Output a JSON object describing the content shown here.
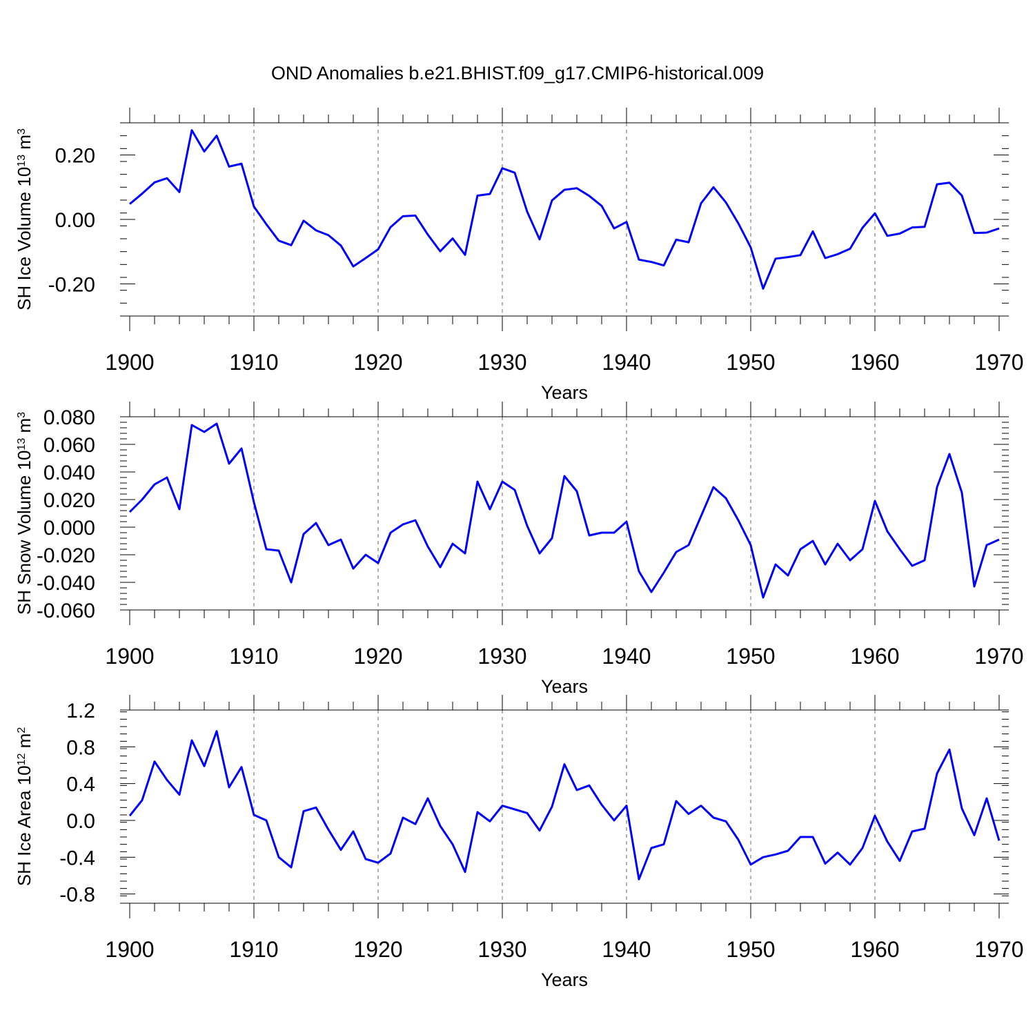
{
  "figure_title": "OND Anomalies b.e21.BHIST.f09_g17.CMIP6-historical.009",
  "line_color": "#0000ff",
  "chart_data": [
    {
      "type": "line",
      "ylabel_main": "SH Ice Volume 10",
      "ylabel_exp": "13",
      "ylabel_unit": " m",
      "ylabel_unit_exp": "3",
      "xlabel": "Years",
      "xlim": [
        1900,
        1970
      ],
      "ylim": [
        -0.3,
        0.3
      ],
      "yticks": [
        -0.2,
        0.0,
        0.2
      ],
      "ytick_labels": [
        "-0.20",
        "0.00",
        "0.20"
      ],
      "xticks": [
        1900,
        1910,
        1920,
        1930,
        1940,
        1950,
        1960,
        1970
      ],
      "xtick_labels": [
        "1900",
        "1910",
        "1920",
        "1930",
        "1940",
        "1950",
        "1960",
        "1970"
      ],
      "x_start": 1900,
      "values": [
        0.048,
        0.08,
        0.115,
        0.128,
        0.085,
        0.277,
        0.211,
        0.26,
        0.164,
        0.173,
        0.04,
        -0.015,
        -0.066,
        -0.08,
        -0.004,
        -0.034,
        -0.049,
        -0.081,
        -0.146,
        -0.12,
        -0.093,
        -0.024,
        0.01,
        0.012,
        -0.047,
        -0.099,
        -0.059,
        -0.11,
        0.074,
        0.079,
        0.159,
        0.145,
        0.024,
        -0.062,
        0.059,
        0.092,
        0.097,
        0.073,
        0.042,
        -0.028,
        -0.008,
        -0.125,
        -0.132,
        -0.143,
        -0.063,
        -0.071,
        0.05,
        0.1,
        0.053,
        -0.012,
        -0.087,
        -0.215,
        -0.122,
        -0.117,
        -0.111,
        -0.037,
        -0.12,
        -0.108,
        -0.091,
        -0.026,
        0.019,
        -0.051,
        -0.044,
        -0.025,
        -0.023,
        0.109,
        0.114,
        0.074,
        -0.042,
        -0.041,
        -0.028
      ]
    },
    {
      "type": "line",
      "ylabel_main": "SH Snow Volume 10",
      "ylabel_exp": "13",
      "ylabel_unit": " m",
      "ylabel_unit_exp": "3",
      "xlabel": "Years",
      "xlim": [
        1900,
        1970
      ],
      "ylim": [
        -0.06,
        0.08
      ],
      "yticks": [
        -0.06,
        -0.04,
        -0.02,
        0.0,
        0.02,
        0.04,
        0.06,
        0.08
      ],
      "ytick_labels": [
        "-0.060",
        "-0.040",
        "-0.020",
        "0.000",
        "0.020",
        "0.040",
        "0.060",
        "0.080"
      ],
      "xticks": [
        1900,
        1910,
        1920,
        1930,
        1940,
        1950,
        1960,
        1970
      ],
      "xtick_labels": [
        "1900",
        "1910",
        "1920",
        "1930",
        "1940",
        "1950",
        "1960",
        "1970"
      ],
      "x_start": 1900,
      "values": [
        0.011,
        0.02,
        0.031,
        0.036,
        0.013,
        0.074,
        0.069,
        0.075,
        0.046,
        0.057,
        0.018,
        -0.016,
        -0.017,
        -0.04,
        -0.005,
        0.003,
        -0.013,
        -0.009,
        -0.03,
        -0.02,
        -0.026,
        -0.004,
        0.002,
        0.005,
        -0.014,
        -0.029,
        -0.012,
        -0.019,
        0.033,
        0.013,
        0.033,
        0.027,
        0.001,
        -0.019,
        -0.008,
        0.037,
        0.026,
        -0.006,
        -0.004,
        -0.004,
        0.004,
        -0.032,
        -0.047,
        -0.033,
        -0.018,
        -0.013,
        0.008,
        0.029,
        0.021,
        0.005,
        -0.013,
        -0.051,
        -0.027,
        -0.035,
        -0.016,
        -0.01,
        -0.027,
        -0.012,
        -0.024,
        -0.016,
        0.019,
        -0.003,
        -0.016,
        -0.028,
        -0.024,
        0.029,
        0.053,
        0.025,
        -0.043,
        -0.013,
        -0.009
      ]
    },
    {
      "type": "line",
      "ylabel_main": "SH Ice Area 10",
      "ylabel_exp": "12",
      "ylabel_unit": " m",
      "ylabel_unit_exp": "2",
      "xlabel": "Years",
      "xlim": [
        1900,
        1970
      ],
      "ylim": [
        -0.9,
        1.2
      ],
      "yticks": [
        -0.8,
        -0.4,
        0.0,
        0.4,
        0.8,
        1.2
      ],
      "ytick_labels": [
        "-0.8",
        "-0.4",
        "0.0",
        "0.4",
        "0.8",
        "1.2"
      ],
      "xticks": [
        1900,
        1910,
        1920,
        1930,
        1940,
        1950,
        1960,
        1970
      ],
      "xtick_labels": [
        "1900",
        "1910",
        "1920",
        "1930",
        "1940",
        "1950",
        "1960",
        "1970"
      ],
      "x_start": 1900,
      "values": [
        0.05,
        0.22,
        0.64,
        0.44,
        0.28,
        0.87,
        0.59,
        0.97,
        0.36,
        0.58,
        0.06,
        0.0,
        -0.4,
        -0.51,
        0.1,
        0.14,
        -0.1,
        -0.32,
        -0.12,
        -0.42,
        -0.46,
        -0.36,
        0.03,
        -0.04,
        0.24,
        -0.06,
        -0.26,
        -0.56,
        0.09,
        -0.01,
        0.16,
        0.12,
        0.08,
        -0.11,
        0.15,
        0.61,
        0.33,
        0.38,
        0.17,
        0.0,
        0.16,
        -0.64,
        -0.3,
        -0.26,
        0.21,
        0.07,
        0.16,
        0.03,
        -0.01,
        -0.21,
        -0.48,
        -0.4,
        -0.37,
        -0.33,
        -0.18,
        -0.18,
        -0.47,
        -0.35,
        -0.48,
        -0.3,
        0.05,
        -0.23,
        -0.44,
        -0.12,
        -0.09,
        0.51,
        0.77,
        0.13,
        -0.16,
        0.24,
        -0.22
      ]
    }
  ]
}
